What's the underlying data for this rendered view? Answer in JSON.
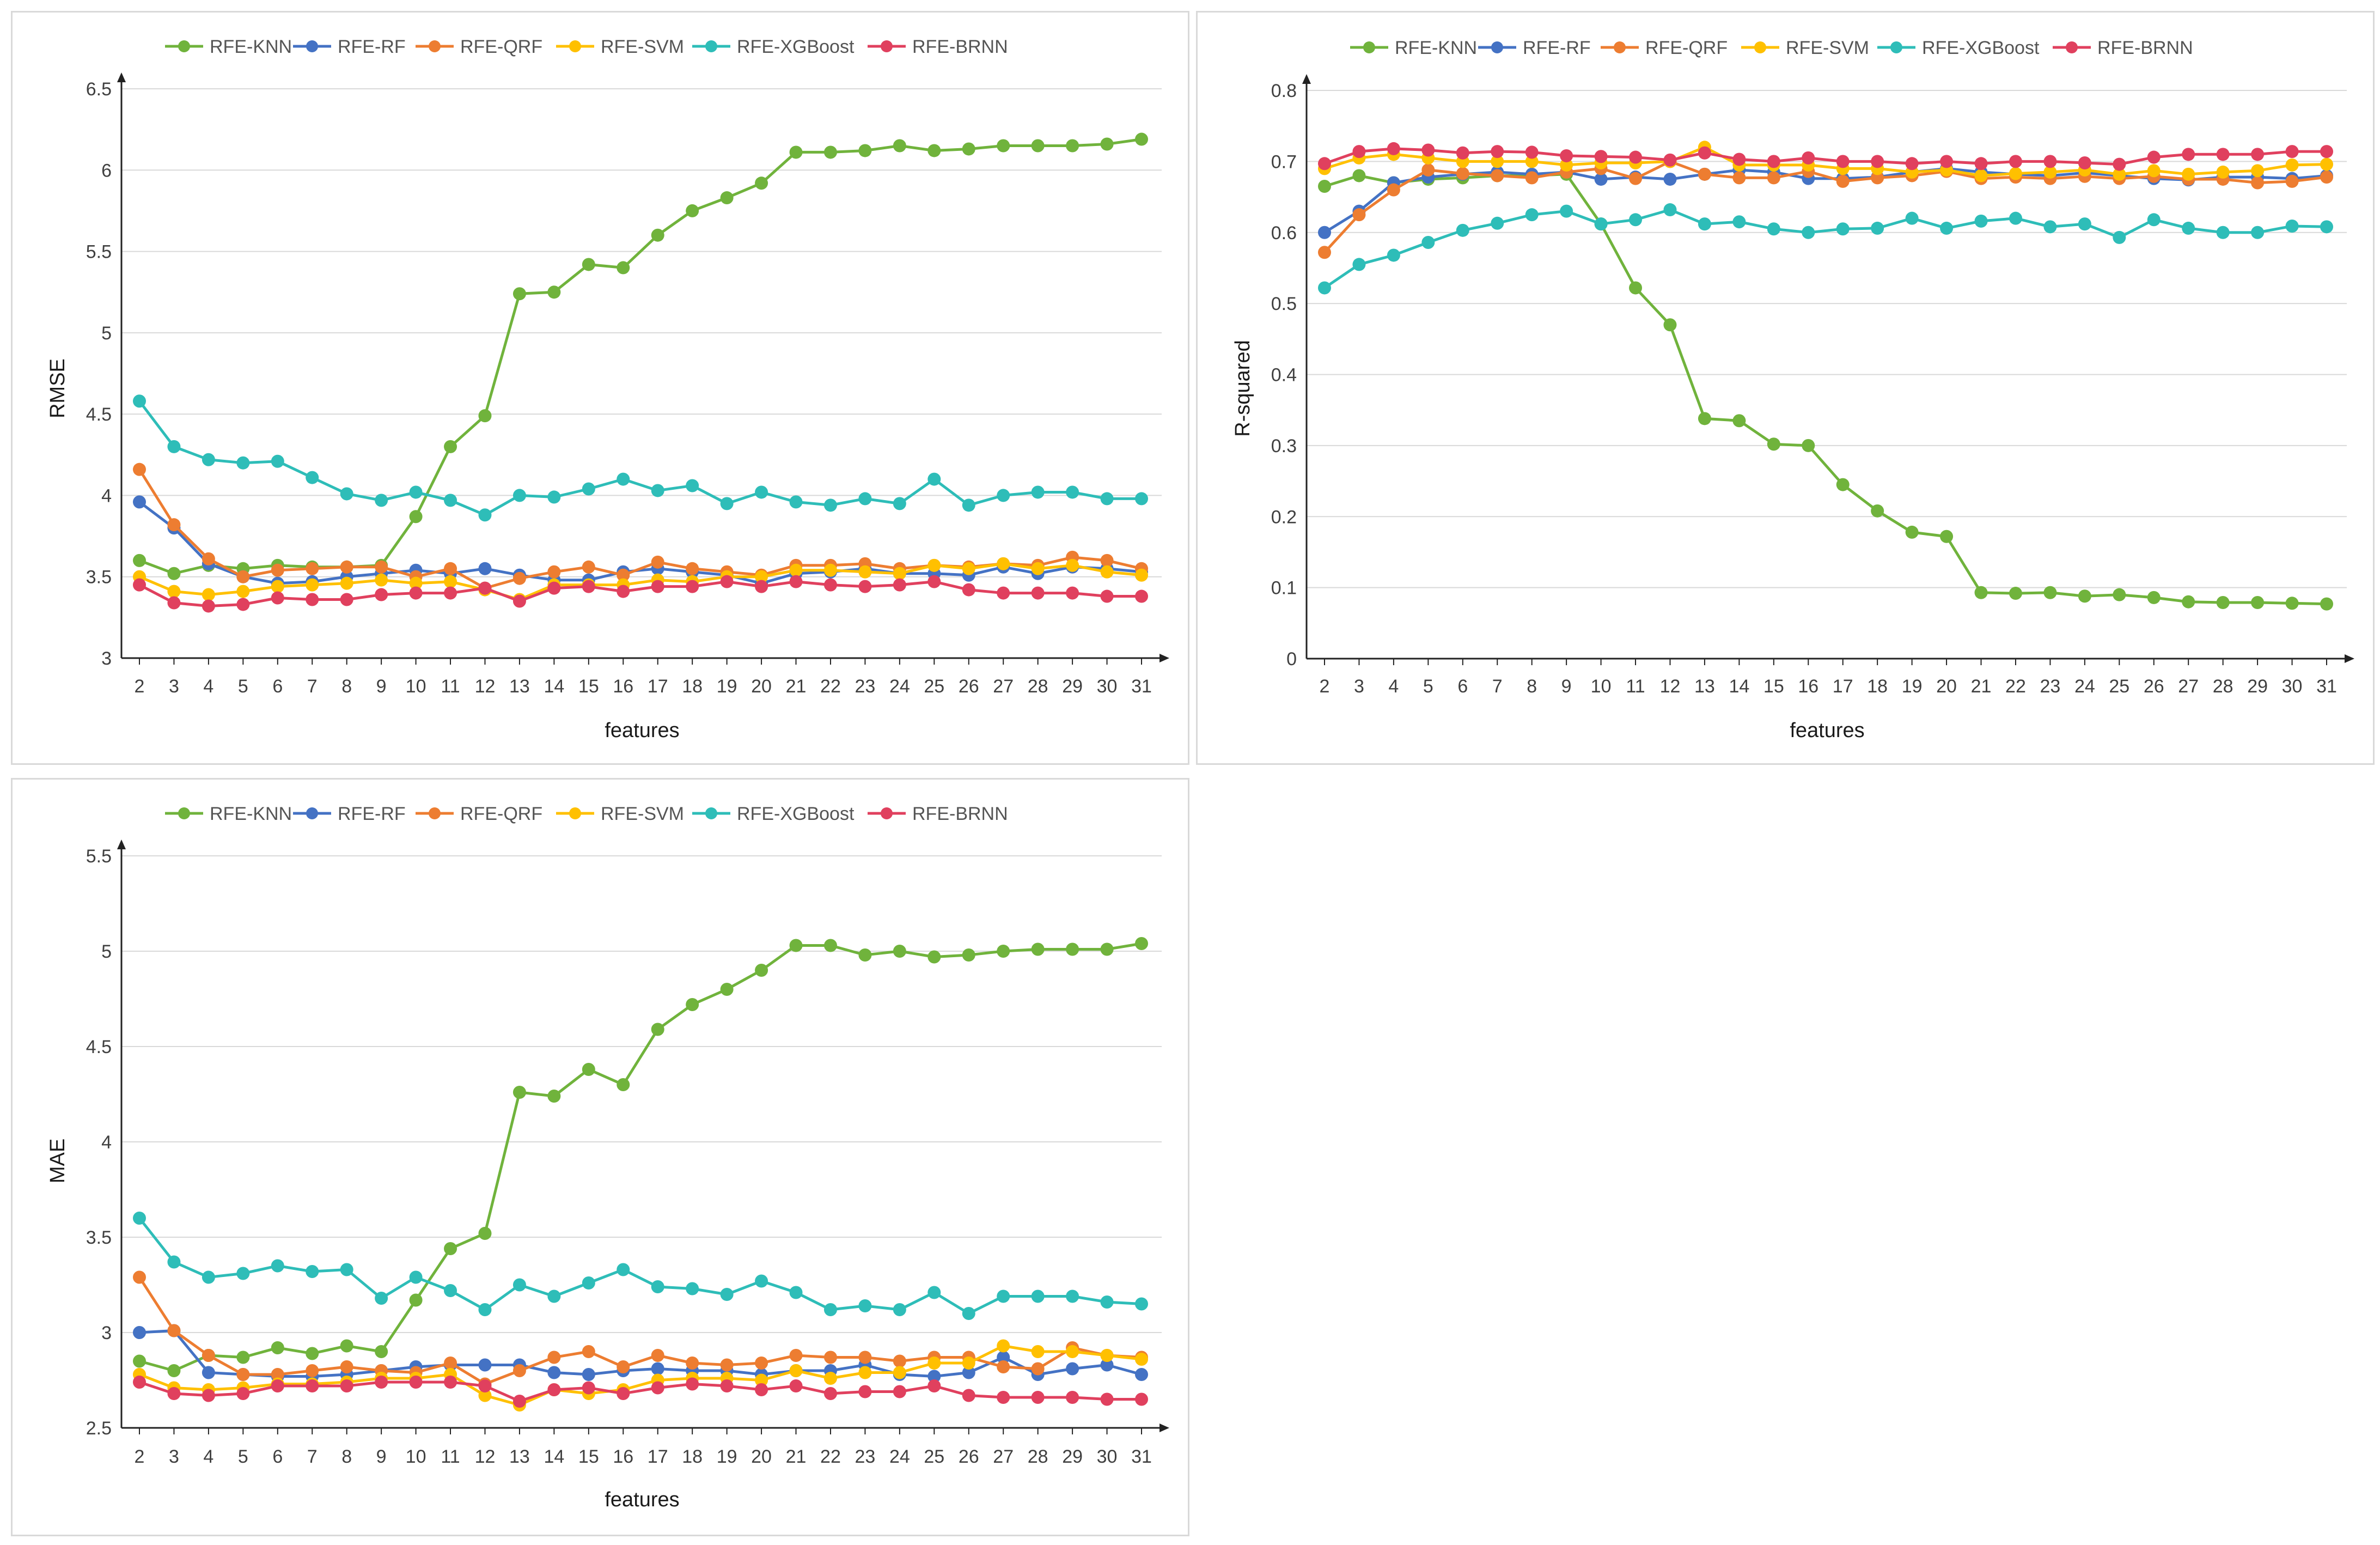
{
  "chart_data": [
    {
      "type": "line",
      "id": "rmse",
      "title": "",
      "xlabel": "features",
      "ylabel": "RMSE",
      "ylim": [
        3,
        6.5
      ],
      "yticks": [
        "3",
        "3.5",
        "4",
        "4.5",
        "5",
        "5.5",
        "6",
        "6.5"
      ],
      "x": [
        2,
        3,
        4,
        5,
        6,
        7,
        8,
        9,
        10,
        11,
        12,
        13,
        14,
        15,
        16,
        17,
        18,
        19,
        20,
        21,
        22,
        23,
        24,
        25,
        26,
        27,
        28,
        29,
        30,
        31
      ],
      "legend": "top",
      "series": [
        {
          "name": "RFE-KNN",
          "color": "#70b33c",
          "values": [
            3.6,
            3.52,
            3.57,
            3.55,
            3.57,
            3.56,
            3.56,
            3.57,
            3.87,
            4.3,
            4.49,
            5.24,
            5.25,
            5.42,
            5.4,
            5.6,
            5.75,
            5.83,
            5.92,
            6.11,
            6.11,
            6.12,
            6.15,
            6.12,
            6.13,
            6.15,
            6.15,
            6.15,
            6.16,
            6.19
          ]
        },
        {
          "name": "RFE-RF",
          "color": "#4472c4",
          "values": [
            3.96,
            3.8,
            3.58,
            3.5,
            3.46,
            3.47,
            3.5,
            3.52,
            3.54,
            3.52,
            3.55,
            3.51,
            3.48,
            3.48,
            3.53,
            3.55,
            3.53,
            3.51,
            3.46,
            3.52,
            3.53,
            3.55,
            3.52,
            3.52,
            3.51,
            3.56,
            3.52,
            3.56,
            3.55,
            3.53
          ]
        },
        {
          "name": "RFE-QRF",
          "color": "#ed7d31",
          "values": [
            4.16,
            3.82,
            3.61,
            3.5,
            3.54,
            3.55,
            3.56,
            3.56,
            3.5,
            3.55,
            3.43,
            3.49,
            3.53,
            3.56,
            3.51,
            3.59,
            3.55,
            3.53,
            3.51,
            3.57,
            3.57,
            3.58,
            3.55,
            3.57,
            3.56,
            3.58,
            3.57,
            3.62,
            3.6,
            3.55
          ]
        },
        {
          "name": "RFE-SVM",
          "color": "#ffc000",
          "values": [
            3.5,
            3.41,
            3.39,
            3.41,
            3.44,
            3.45,
            3.46,
            3.48,
            3.46,
            3.47,
            3.42,
            3.36,
            3.45,
            3.45,
            3.45,
            3.48,
            3.47,
            3.5,
            3.5,
            3.54,
            3.54,
            3.53,
            3.52,
            3.57,
            3.55,
            3.58,
            3.55,
            3.57,
            3.53,
            3.51
          ]
        },
        {
          "name": "RFE-XGBoost",
          "color": "#2ebdb8",
          "values": [
            4.58,
            4.3,
            4.22,
            4.2,
            4.21,
            4.11,
            4.01,
            3.97,
            4.02,
            3.97,
            3.88,
            4.0,
            3.99,
            4.04,
            4.1,
            4.03,
            4.06,
            3.95,
            4.02,
            3.96,
            3.94,
            3.98,
            3.95,
            4.1,
            3.94,
            4.0,
            4.02,
            4.02,
            3.98,
            3.98
          ]
        },
        {
          "name": "RFE-BRNN",
          "color": "#e0405e",
          "values": [
            3.45,
            3.34,
            3.32,
            3.33,
            3.37,
            3.36,
            3.36,
            3.39,
            3.4,
            3.4,
            3.43,
            3.35,
            3.43,
            3.44,
            3.41,
            3.44,
            3.44,
            3.47,
            3.44,
            3.47,
            3.45,
            3.44,
            3.45,
            3.47,
            3.42,
            3.4,
            3.4,
            3.4,
            3.38,
            3.38
          ]
        }
      ]
    },
    {
      "type": "line",
      "id": "r2",
      "title": "",
      "xlabel": "features",
      "ylabel": "R-squared",
      "ylim": [
        0,
        0.8
      ],
      "yticks": [
        "0",
        "0.1",
        "0.2",
        "0.3",
        "0.4",
        "0.5",
        "0.6",
        "0.7",
        "0.8"
      ],
      "x": [
        2,
        3,
        4,
        5,
        6,
        7,
        8,
        9,
        10,
        11,
        12,
        13,
        14,
        15,
        16,
        17,
        18,
        19,
        20,
        21,
        22,
        23,
        24,
        25,
        26,
        27,
        28,
        29,
        30,
        31
      ],
      "legend": "top",
      "series": [
        {
          "name": "RFE-KNN",
          "color": "#70b33c",
          "values": [
            0.665,
            0.68,
            0.67,
            0.675,
            0.677,
            0.68,
            0.68,
            0.682,
            0.612,
            0.522,
            0.47,
            0.338,
            0.335,
            0.302,
            0.3,
            0.245,
            0.208,
            0.178,
            0.172,
            0.093,
            0.092,
            0.093,
            0.088,
            0.09,
            0.086,
            0.08,
            0.079,
            0.079,
            0.078,
            0.077
          ]
        },
        {
          "name": "RFE-RF",
          "color": "#4472c4",
          "values": [
            0.6,
            0.63,
            0.67,
            0.678,
            0.682,
            0.685,
            0.682,
            0.685,
            0.675,
            0.678,
            0.675,
            0.682,
            0.688,
            0.685,
            0.676,
            0.676,
            0.678,
            0.685,
            0.69,
            0.685,
            0.682,
            0.68,
            0.684,
            0.68,
            0.676,
            0.674,
            0.678,
            0.678,
            0.676,
            0.68
          ]
        },
        {
          "name": "RFE-QRF",
          "color": "#ed7d31",
          "values": [
            0.572,
            0.625,
            0.66,
            0.688,
            0.683,
            0.68,
            0.677,
            0.685,
            0.69,
            0.676,
            0.7,
            0.682,
            0.677,
            0.677,
            0.686,
            0.672,
            0.677,
            0.68,
            0.686,
            0.676,
            0.678,
            0.676,
            0.679,
            0.676,
            0.679,
            0.675,
            0.675,
            0.67,
            0.672,
            0.678
          ]
        },
        {
          "name": "RFE-SVM",
          "color": "#ffc000",
          "values": [
            0.69,
            0.705,
            0.71,
            0.705,
            0.7,
            0.7,
            0.7,
            0.695,
            0.698,
            0.698,
            0.7,
            0.72,
            0.695,
            0.695,
            0.695,
            0.69,
            0.69,
            0.685,
            0.688,
            0.68,
            0.683,
            0.685,
            0.688,
            0.682,
            0.687,
            0.682,
            0.685,
            0.687,
            0.695,
            0.696
          ]
        },
        {
          "name": "RFE-XGBoost",
          "color": "#2ebdb8",
          "values": [
            0.522,
            0.555,
            0.568,
            0.586,
            0.603,
            0.613,
            0.625,
            0.63,
            0.612,
            0.618,
            0.632,
            0.612,
            0.615,
            0.605,
            0.6,
            0.605,
            0.606,
            0.62,
            0.606,
            0.616,
            0.62,
            0.608,
            0.612,
            0.593,
            0.618,
            0.606,
            0.6,
            0.6,
            0.609,
            0.608
          ]
        },
        {
          "name": "RFE-BRNN",
          "color": "#e0405e",
          "values": [
            0.697,
            0.714,
            0.718,
            0.716,
            0.712,
            0.714,
            0.713,
            0.708,
            0.707,
            0.706,
            0.702,
            0.712,
            0.703,
            0.7,
            0.705,
            0.7,
            0.7,
            0.697,
            0.7,
            0.697,
            0.7,
            0.7,
            0.698,
            0.696,
            0.706,
            0.71,
            0.71,
            0.71,
            0.714,
            0.714
          ]
        }
      ]
    },
    {
      "type": "line",
      "id": "mae",
      "title": "",
      "xlabel": "features",
      "ylabel": "MAE",
      "ylim": [
        2.5,
        5.5
      ],
      "yticks": [
        "2.5",
        "3",
        "3.5",
        "4",
        "4.5",
        "5",
        "5.5"
      ],
      "x": [
        2,
        3,
        4,
        5,
        6,
        7,
        8,
        9,
        10,
        11,
        12,
        13,
        14,
        15,
        16,
        17,
        18,
        19,
        20,
        21,
        22,
        23,
        24,
        25,
        26,
        27,
        28,
        29,
        30,
        31
      ],
      "legend": "top",
      "series": [
        {
          "name": "RFE-KNN",
          "color": "#70b33c",
          "values": [
            2.85,
            2.8,
            2.88,
            2.87,
            2.92,
            2.89,
            2.93,
            2.9,
            3.17,
            3.44,
            3.52,
            4.26,
            4.24,
            4.38,
            4.3,
            4.59,
            4.72,
            4.8,
            4.9,
            5.03,
            5.03,
            4.98,
            5.0,
            4.97,
            4.98,
            5.0,
            5.01,
            5.01,
            5.01,
            5.04
          ]
        },
        {
          "name": "RFE-RF",
          "color": "#4472c4",
          "values": [
            3.0,
            3.01,
            2.79,
            2.78,
            2.77,
            2.77,
            2.78,
            2.8,
            2.82,
            2.83,
            2.83,
            2.83,
            2.79,
            2.78,
            2.8,
            2.81,
            2.8,
            2.8,
            2.78,
            2.8,
            2.8,
            2.83,
            2.78,
            2.77,
            2.79,
            2.87,
            2.78,
            2.81,
            2.83,
            2.78
          ]
        },
        {
          "name": "RFE-QRF",
          "color": "#ed7d31",
          "values": [
            3.29,
            3.01,
            2.88,
            2.78,
            2.78,
            2.8,
            2.82,
            2.8,
            2.79,
            2.84,
            2.73,
            2.8,
            2.87,
            2.9,
            2.82,
            2.88,
            2.84,
            2.83,
            2.84,
            2.88,
            2.87,
            2.87,
            2.85,
            2.87,
            2.87,
            2.82,
            2.81,
            2.92,
            2.88,
            2.87
          ]
        },
        {
          "name": "RFE-SVM",
          "color": "#ffc000",
          "values": [
            2.78,
            2.71,
            2.7,
            2.71,
            2.73,
            2.73,
            2.74,
            2.76,
            2.76,
            2.78,
            2.67,
            2.62,
            2.7,
            2.68,
            2.7,
            2.75,
            2.76,
            2.76,
            2.75,
            2.8,
            2.76,
            2.79,
            2.79,
            2.84,
            2.84,
            2.93,
            2.9,
            2.9,
            2.88,
            2.86
          ]
        },
        {
          "name": "RFE-XGBoost",
          "color": "#2ebdb8",
          "values": [
            3.6,
            3.37,
            3.29,
            3.31,
            3.35,
            3.32,
            3.33,
            3.18,
            3.29,
            3.22,
            3.12,
            3.25,
            3.19,
            3.26,
            3.33,
            3.24,
            3.23,
            3.2,
            3.27,
            3.21,
            3.12,
            3.14,
            3.12,
            3.21,
            3.1,
            3.19,
            3.19,
            3.19,
            3.16,
            3.15
          ]
        },
        {
          "name": "RFE-BRNN",
          "color": "#e0405e",
          "values": [
            2.74,
            2.68,
            2.67,
            2.68,
            2.72,
            2.72,
            2.72,
            2.74,
            2.74,
            2.74,
            2.72,
            2.64,
            2.7,
            2.71,
            2.68,
            2.71,
            2.73,
            2.72,
            2.7,
            2.72,
            2.68,
            2.69,
            2.69,
            2.72,
            2.67,
            2.66,
            2.66,
            2.66,
            2.65,
            2.65
          ]
        }
      ]
    }
  ]
}
